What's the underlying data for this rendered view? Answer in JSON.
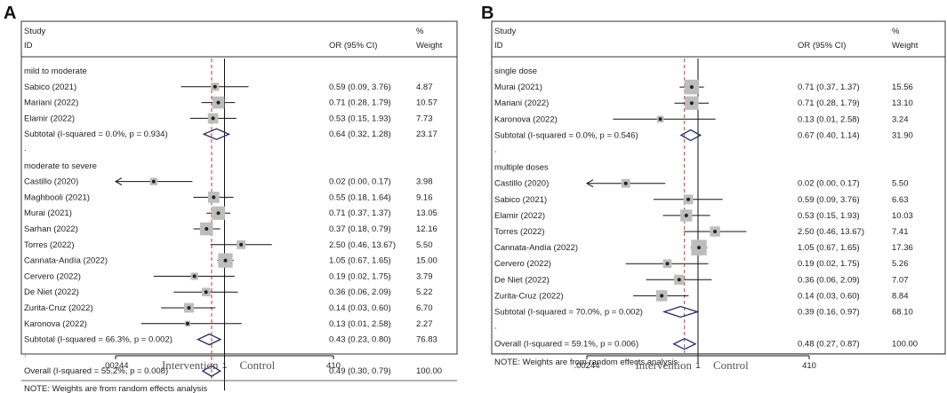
{
  "figure": {
    "panels": [
      "A",
      "B"
    ]
  },
  "chart_data": [
    {
      "panel": "A",
      "type": "forest",
      "header": {
        "study": "Study",
        "id": "ID",
        "or": "OR (95% CI)",
        "pct": "%",
        "weight": "Weight"
      },
      "x_scale": "log",
      "x_ticks": [
        ".00244",
        "1",
        "410"
      ],
      "xlim": [
        0.00244,
        410
      ],
      "favors_left": "Intervention",
      "favors_right": "Control",
      "null_line": 1,
      "dashed_line": 0.49,
      "note": "NOTE: Weights are from random effects analysis",
      "groups": [
        {
          "label": "mild to moderate",
          "studies": [
            {
              "name": "Sabico (2021)",
              "or": 0.59,
              "lo": 0.09,
              "hi": 3.76,
              "text": "0.59 (0.09, 3.76)",
              "weight": "4.87"
            },
            {
              "name": "Mariani (2022)",
              "or": 0.71,
              "lo": 0.28,
              "hi": 1.79,
              "text": "0.71 (0.28, 1.79)",
              "weight": "10.57"
            },
            {
              "name": "Elamir  (2022)",
              "or": 0.53,
              "lo": 0.15,
              "hi": 1.93,
              "text": "0.53 (0.15, 1.93)",
              "weight": "7.73"
            }
          ],
          "subtotal": {
            "label": "Subtotal  (I-squared = 0.0%, p = 0.934)",
            "or": 0.64,
            "lo": 0.32,
            "hi": 1.28,
            "text": "0.64 (0.32, 1.28)",
            "weight": "23.17"
          }
        },
        {
          "label": "moderate to severe",
          "studies": [
            {
              "name": "Castillo  (2020)",
              "or": 0.02,
              "lo": 0.0,
              "hi": 0.17,
              "text": "0.02 (0.00, 0.17)",
              "weight": "3.98"
            },
            {
              "name": "Maghbooli (2021)",
              "or": 0.55,
              "lo": 0.18,
              "hi": 1.64,
              "text": "0.55 (0.18, 1.64)",
              "weight": "9.16"
            },
            {
              "name": "Murai (2021)",
              "or": 0.71,
              "lo": 0.37,
              "hi": 1.37,
              "text": "0.71 (0.37, 1.37)",
              "weight": "13.05"
            },
            {
              "name": "Sarhan  (2022)",
              "or": 0.37,
              "lo": 0.18,
              "hi": 0.79,
              "text": "0.37 (0.18, 0.79)",
              "weight": "12.16"
            },
            {
              "name": "Torres  (2022)",
              "or": 2.5,
              "lo": 0.46,
              "hi": 13.67,
              "text": "2.50 (0.46, 13.67)",
              "weight": "5.50"
            },
            {
              "name": "Cannata-Andía (2022)",
              "or": 1.05,
              "lo": 0.67,
              "hi": 1.65,
              "text": "1.05 (0.67, 1.65)",
              "weight": "15.00"
            },
            {
              "name": "Cervero (2022)",
              "or": 0.19,
              "lo": 0.02,
              "hi": 1.75,
              "text": "0.19 (0.02, 1.75)",
              "weight": "3.79"
            },
            {
              "name": "De Niet (2022)",
              "or": 0.36,
              "lo": 0.06,
              "hi": 2.09,
              "text": "0.36 (0.06, 2.09)",
              "weight": "5.22"
            },
            {
              "name": "Zurita-Cruz (2022)",
              "or": 0.14,
              "lo": 0.03,
              "hi": 0.6,
              "text": "0.14 (0.03, 0.60)",
              "weight": "6.70"
            },
            {
              "name": "Karonova (2022)",
              "or": 0.13,
              "lo": 0.01,
              "hi": 2.58,
              "text": "0.13 (0.01, 2.58)",
              "weight": "2.27"
            }
          ],
          "subtotal": {
            "label": "Subtotal  (I-squared = 66.3%, p = 0.002)",
            "or": 0.43,
            "lo": 0.23,
            "hi": 0.8,
            "text": "0.43 (0.23, 0.80)",
            "weight": "76.83"
          }
        }
      ],
      "overall": {
        "label": "Overall  (I-squared = 55.2%, p = 0.008)",
        "or": 0.49,
        "lo": 0.3,
        "hi": 0.79,
        "text": "0.49 (0.30, 0.79)",
        "weight": "100.00"
      }
    },
    {
      "panel": "B",
      "type": "forest",
      "header": {
        "study": "Study",
        "id": "ID",
        "or": "OR (95% CI)",
        "pct": "%",
        "weight": "Weight"
      },
      "x_scale": "log",
      "x_ticks": [
        ".00244",
        "1",
        "410"
      ],
      "xlim": [
        0.00244,
        410
      ],
      "favors_left": "Intervention",
      "favors_right": "Control",
      "null_line": 1,
      "dashed_line": 0.48,
      "note": "NOTE: Weights are from random effects analysis",
      "groups": [
        {
          "label": "single dose",
          "studies": [
            {
              "name": "Murai (2021)",
              "or": 0.71,
              "lo": 0.37,
              "hi": 1.37,
              "text": "0.71 (0.37, 1.37)",
              "weight": "15.56"
            },
            {
              "name": "Mariani (2022)",
              "or": 0.71,
              "lo": 0.28,
              "hi": 1.79,
              "text": "0.71 (0.28, 1.79)",
              "weight": "13.10"
            },
            {
              "name": "Karonova (2022)",
              "or": 0.13,
              "lo": 0.01,
              "hi": 2.58,
              "text": "0.13 (0.01, 2.58)",
              "weight": "3.24"
            }
          ],
          "subtotal": {
            "label": "Subtotal  (I-squared = 0.0%, p = 0.546)",
            "or": 0.67,
            "lo": 0.4,
            "hi": 1.14,
            "text": "0.67 (0.40, 1.14)",
            "weight": "31.90"
          }
        },
        {
          "label": "multiple doses",
          "studies": [
            {
              "name": "Castillo  (2020)",
              "or": 0.02,
              "lo": 0.0,
              "hi": 0.17,
              "text": "0.02 (0.00, 0.17)",
              "weight": "5.50"
            },
            {
              "name": "Sabico (2021)",
              "or": 0.59,
              "lo": 0.09,
              "hi": 3.76,
              "text": "0.59 (0.09, 3.76)",
              "weight": "6.63"
            },
            {
              "name": "Elamir  (2022)",
              "or": 0.53,
              "lo": 0.15,
              "hi": 1.93,
              "text": "0.53 (0.15, 1.93)",
              "weight": "10.03"
            },
            {
              "name": "Torres  (2022)",
              "or": 2.5,
              "lo": 0.46,
              "hi": 13.67,
              "text": "2.50 (0.46, 13.67)",
              "weight": "7.41"
            },
            {
              "name": "Cannata-Andía (2022)",
              "or": 1.05,
              "lo": 0.67,
              "hi": 1.65,
              "text": "1.05 (0.67, 1.65)",
              "weight": "17.36"
            },
            {
              "name": "Cervero (2022)",
              "or": 0.19,
              "lo": 0.02,
              "hi": 1.75,
              "text": "0.19 (0.02, 1.75)",
              "weight": "5.26"
            },
            {
              "name": "De Niet (2022)",
              "or": 0.36,
              "lo": 0.06,
              "hi": 2.09,
              "text": "0.36 (0.06, 2.09)",
              "weight": "7.07"
            },
            {
              "name": "Zurita-Cruz (2022)",
              "or": 0.14,
              "lo": 0.03,
              "hi": 0.6,
              "text": "0.14 (0.03, 0.60)",
              "weight": "8.84"
            }
          ],
          "subtotal": {
            "label": "Subtotal  (I-squared = 70.0%, p = 0.002)",
            "or": 0.39,
            "lo": 0.16,
            "hi": 0.97,
            "text": "0.39 (0.16, 0.97)",
            "weight": "68.10"
          }
        }
      ],
      "overall": {
        "label": "Overall  (I-squared = 59.1%, p = 0.006)",
        "or": 0.48,
        "lo": 0.27,
        "hi": 0.87,
        "text": "0.48 (0.27, 0.87)",
        "weight": "100.00"
      }
    }
  ]
}
